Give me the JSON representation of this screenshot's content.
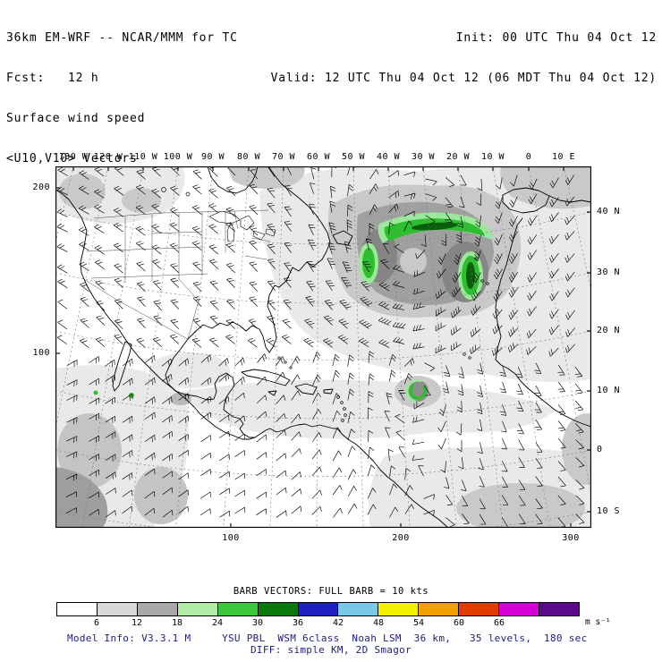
{
  "header": {
    "model_line": "36km EM-WRF -- NCAR/MMM for TC",
    "fcst_line": "Fcst:   12 h",
    "field_line": "Surface wind speed",
    "vector_line": "<U10,V10> Vectors",
    "init_line": "Init: 00 UTC Thu 04 Oct 12",
    "valid_line": "Valid: 12 UTC Thu 04 Oct 12 (06 MDT Thu 04 Oct 12)"
  },
  "map": {
    "axes": {
      "top": [
        "130 W",
        "120 W",
        "110 W",
        "100 W",
        "90 W",
        "80 W",
        "70 W",
        "60 W",
        "50 W",
        "40 W",
        "30 W",
        "20 W",
        "10 W",
        "0",
        "10 E"
      ],
      "right": [
        "40 N",
        "30 N",
        "20 N",
        "10 N",
        "0",
        "10 S"
      ],
      "left": [
        "200",
        "100"
      ],
      "bottom": [
        "100",
        "200",
        "300"
      ]
    }
  },
  "legend": {
    "barb_caption": "BARB VECTORS: FULL BARB = 10 kts",
    "colorbar": {
      "labels": [
        "6",
        "12",
        "18",
        "24",
        "30",
        "36",
        "42",
        "48",
        "54",
        "60",
        "66"
      ],
      "colors": [
        "#ffffff",
        "#d8d8d8",
        "#a8a8a8",
        "#b2eba8",
        "#3cc83c",
        "#0a780a",
        "#2020c0",
        "#78c8ea",
        "#f0f000",
        "#f0a000",
        "#e03c00",
        "#d400d4",
        "#5c0a8c"
      ],
      "units": "m s⁻¹"
    }
  },
  "footer": {
    "line1": "Model Info: V3.3.1 M     YSU PBL  WSM 6class  Noah LSM  36 km,   35 levels,  180 sec",
    "line2": "DIFF: simple KM, 2D Smagor",
    "text_color": "#1c1c8a"
  }
}
